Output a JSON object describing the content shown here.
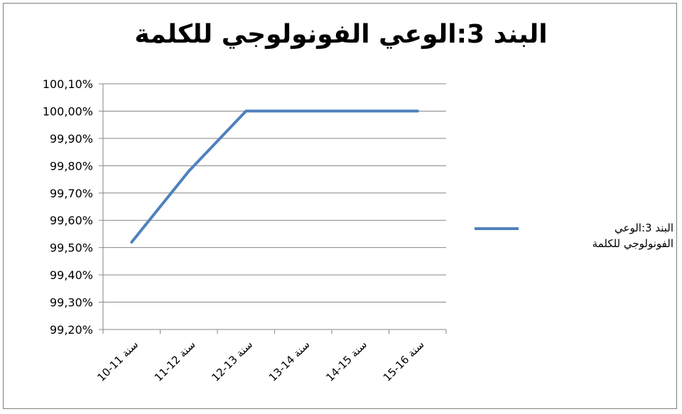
{
  "chart_data": {
    "type": "line",
    "title": "البند 3:الوعي الفونولوجي للكلمة",
    "xlabel": "",
    "ylabel": "",
    "categories": [
      "10-11 سنة",
      "11-12 سنة",
      "12-13 سنة",
      "13-14 سنة",
      "14-15 سنة",
      "15-16 سنة"
    ],
    "y_tick_labels": [
      "100,10%",
      "100,00%",
      "99,90%",
      "99,80%",
      "99,70%",
      "99,60%",
      "99,50%",
      "99,40%",
      "99,30%",
      "99,20%"
    ],
    "ylim": [
      99.2,
      100.1
    ],
    "grid": true,
    "legend_position": "right",
    "series": [
      {
        "name": "البند 3:الوعي الفونولوجي للكلمة",
        "color": "#4f81bd",
        "values": [
          99.52,
          99.78,
          100.0,
          100.0,
          100.0,
          100.0
        ]
      }
    ]
  }
}
